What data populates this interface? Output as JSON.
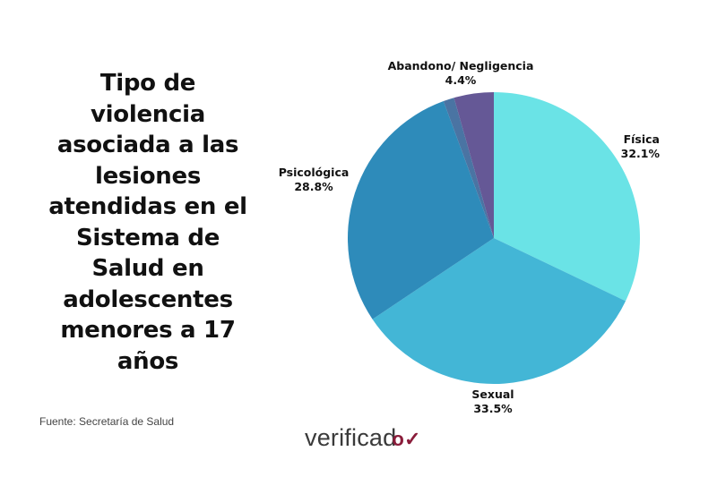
{
  "title": "Tipo de violencia asociada a las lesiones atendidas en el Sistema de Salud en adolescentes menores a 17 años",
  "title_lines": [
    "Tipo de",
    "violencia",
    "asociada a las",
    "lesiones",
    "atendidas en el",
    "Sistema de",
    "Salud en",
    "adolescentes",
    "menores a 17",
    "años"
  ],
  "source": "Fuente: Secretaría de Salud",
  "logo": {
    "text": "verificad",
    "mark": "o✓"
  },
  "labels": {
    "fisica": {
      "name": "Física",
      "value": "32.1%"
    },
    "sexual": {
      "name": "Sexual",
      "value": "33.5%"
    },
    "psicologica": {
      "name": "Psicológica",
      "value": "28.8%"
    },
    "abandono": {
      "name": "Abandono/ Negligencia",
      "value": "4.4%"
    }
  },
  "chart_data": {
    "type": "pie",
    "title": "Tipo de violencia asociada a las lesiones atendidas en el Sistema de Salud en adolescentes menores a 17 años",
    "categories": [
      "Física",
      "Sexual",
      "Psicológica",
      "(sin etiqueta)",
      "Abandono/ Negligencia"
    ],
    "values": [
      32.1,
      33.5,
      28.8,
      1.2,
      4.4
    ],
    "colors": [
      "#6ae3e6",
      "#43b6d6",
      "#2e8bba",
      "#4a74a3",
      "#655896"
    ],
    "start_angle": "12 o'clock, clockwise",
    "legend": "none (direct labels)",
    "source": "Fuente: Secretaría de Salud"
  }
}
